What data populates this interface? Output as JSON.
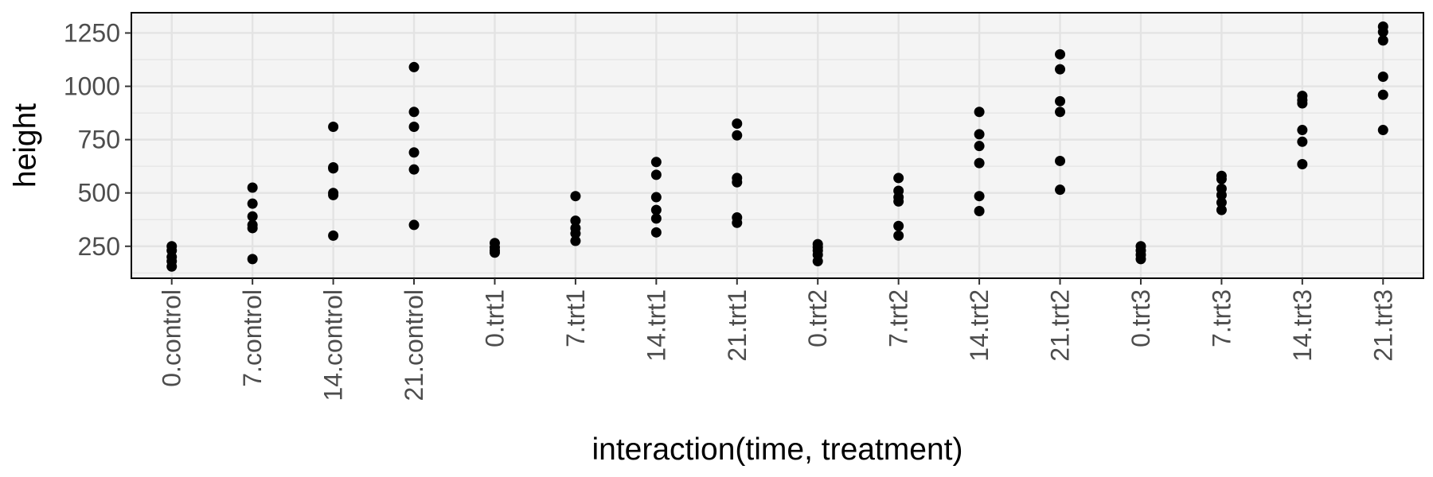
{
  "chart_data": {
    "type": "scatter",
    "title": "",
    "xlabel": "interaction(time, treatment)",
    "ylabel": "height",
    "ylim": [
      100,
      1345
    ],
    "yticks": [
      250,
      500,
      750,
      1000,
      1250
    ],
    "grid": true,
    "legend": "none",
    "colors": {
      "panel": "#f4f4f4",
      "grid": "#e3e3e3",
      "point": "#000000",
      "border": "#000000",
      "tick_text": "#4d4d4d"
    },
    "categories": [
      "0.control",
      "7.control",
      "14.control",
      "21.control",
      "0.trt1",
      "7.trt1",
      "14.trt1",
      "21.trt1",
      "0.trt2",
      "7.trt2",
      "14.trt2",
      "21.trt2",
      "0.trt3",
      "7.trt3",
      "14.trt3",
      "21.trt3"
    ],
    "points": [
      {
        "category": "0.control",
        "values": [
          155,
          180,
          200,
          230,
          250
        ]
      },
      {
        "category": "7.control",
        "values": [
          190,
          335,
          350,
          390,
          450,
          525
        ]
      },
      {
        "category": "14.control",
        "values": [
          300,
          490,
          500,
          615,
          620,
          810
        ]
      },
      {
        "category": "21.control",
        "values": [
          350,
          610,
          690,
          810,
          880,
          1090
        ]
      },
      {
        "category": "0.trt1",
        "values": [
          220,
          230,
          245,
          265
        ]
      },
      {
        "category": "7.trt1",
        "values": [
          275,
          310,
          335,
          370,
          485
        ]
      },
      {
        "category": "14.trt1",
        "values": [
          315,
          380,
          420,
          480,
          585,
          645
        ]
      },
      {
        "category": "21.trt1",
        "values": [
          360,
          385,
          550,
          570,
          770,
          825
        ]
      },
      {
        "category": "0.trt2",
        "values": [
          180,
          210,
          230,
          245,
          260
        ]
      },
      {
        "category": "7.trt2",
        "values": [
          300,
          345,
          460,
          480,
          510,
          570
        ]
      },
      {
        "category": "14.trt2",
        "values": [
          415,
          485,
          640,
          720,
          775,
          880
        ]
      },
      {
        "category": "21.trt2",
        "values": [
          515,
          650,
          880,
          930,
          1080,
          1150
        ]
      },
      {
        "category": "0.trt3",
        "values": [
          190,
          210,
          230,
          250
        ]
      },
      {
        "category": "7.trt3",
        "values": [
          420,
          455,
          490,
          520,
          565,
          580
        ]
      },
      {
        "category": "14.trt3",
        "values": [
          635,
          740,
          795,
          920,
          935,
          955
        ]
      },
      {
        "category": "21.trt3",
        "values": [
          795,
          960,
          1045,
          1215,
          1255,
          1280
        ]
      }
    ]
  }
}
